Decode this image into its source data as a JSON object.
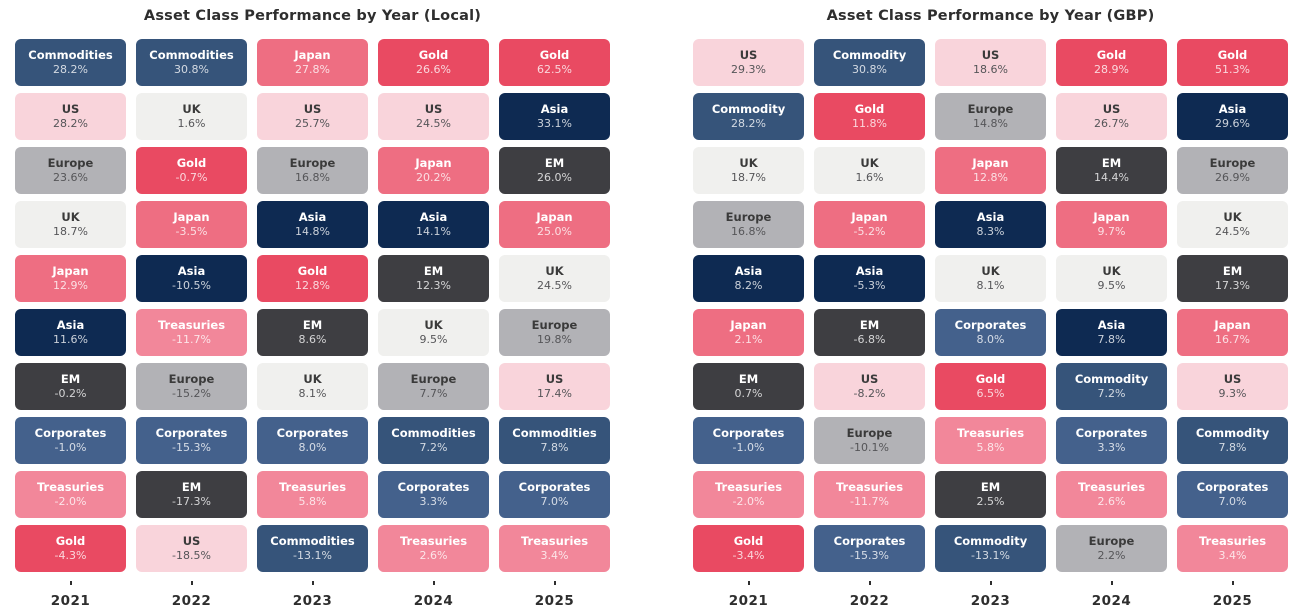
{
  "palette": {
    "commodities": {
      "bg": "#36547A",
      "text": "dark"
    },
    "corporates": {
      "bg": "#44618C",
      "text": "dark"
    },
    "asia": {
      "bg": "#0E2A52",
      "text": "dark"
    },
    "em": {
      "bg": "#3E3E42",
      "text": "dark"
    },
    "europe": {
      "bg": "#B2B2B6",
      "text": "light"
    },
    "uk": {
      "bg": "#F0F0EE",
      "text": "light"
    },
    "us": {
      "bg": "#F9D4DB",
      "text": "light"
    },
    "japan": {
      "bg": "#EE6E82",
      "text": "dark"
    },
    "treasuries": {
      "bg": "#F2879A",
      "text": "dark"
    },
    "gold": {
      "bg": "#E94A62",
      "text": "dark"
    }
  },
  "chart_data": [
    {
      "type": "table",
      "title": "Asset Class Performance by Year (Local)",
      "years": [
        "2021",
        "2022",
        "2023",
        "2024",
        "2025"
      ],
      "columns": [
        {
          "year": "2021",
          "tiles": [
            {
              "label": "Commodities",
              "value": "28.2%",
              "cls": "commodities"
            },
            {
              "label": "US",
              "value": "28.2%",
              "cls": "us"
            },
            {
              "label": "Europe",
              "value": "23.6%",
              "cls": "europe"
            },
            {
              "label": "UK",
              "value": "18.7%",
              "cls": "uk"
            },
            {
              "label": "Japan",
              "value": "12.9%",
              "cls": "japan"
            },
            {
              "label": "Asia",
              "value": "11.6%",
              "cls": "asia"
            },
            {
              "label": "EM",
              "value": "-0.2%",
              "cls": "em"
            },
            {
              "label": "Corporates",
              "value": "-1.0%",
              "cls": "corporates"
            },
            {
              "label": "Treasuries",
              "value": "-2.0%",
              "cls": "treasuries"
            },
            {
              "label": "Gold",
              "value": "-4.3%",
              "cls": "gold"
            }
          ]
        },
        {
          "year": "2022",
          "tiles": [
            {
              "label": "Commodities",
              "value": "30.8%",
              "cls": "commodities"
            },
            {
              "label": "UK",
              "value": "1.6%",
              "cls": "uk"
            },
            {
              "label": "Gold",
              "value": "-0.7%",
              "cls": "gold"
            },
            {
              "label": "Japan",
              "value": "-3.5%",
              "cls": "japan"
            },
            {
              "label": "Asia",
              "value": "-10.5%",
              "cls": "asia"
            },
            {
              "label": "Treasuries",
              "value": "-11.7%",
              "cls": "treasuries"
            },
            {
              "label": "Europe",
              "value": "-15.2%",
              "cls": "europe"
            },
            {
              "label": "Corporates",
              "value": "-15.3%",
              "cls": "corporates"
            },
            {
              "label": "EM",
              "value": "-17.3%",
              "cls": "em"
            },
            {
              "label": "US",
              "value": "-18.5%",
              "cls": "us"
            }
          ]
        },
        {
          "year": "2023",
          "tiles": [
            {
              "label": "Japan",
              "value": "27.8%",
              "cls": "japan"
            },
            {
              "label": "US",
              "value": "25.7%",
              "cls": "us"
            },
            {
              "label": "Europe",
              "value": "16.8%",
              "cls": "europe"
            },
            {
              "label": "Asia",
              "value": "14.8%",
              "cls": "asia"
            },
            {
              "label": "Gold",
              "value": "12.8%",
              "cls": "gold"
            },
            {
              "label": "EM",
              "value": "8.6%",
              "cls": "em"
            },
            {
              "label": "UK",
              "value": "8.1%",
              "cls": "uk"
            },
            {
              "label": "Corporates",
              "value": "8.0%",
              "cls": "corporates"
            },
            {
              "label": "Treasuries",
              "value": "5.8%",
              "cls": "treasuries"
            },
            {
              "label": "Commodities",
              "value": "-13.1%",
              "cls": "commodities"
            }
          ]
        },
        {
          "year": "2024",
          "tiles": [
            {
              "label": "Gold",
              "value": "26.6%",
              "cls": "gold"
            },
            {
              "label": "US",
              "value": "24.5%",
              "cls": "us"
            },
            {
              "label": "Japan",
              "value": "20.2%",
              "cls": "japan"
            },
            {
              "label": "Asia",
              "value": "14.1%",
              "cls": "asia"
            },
            {
              "label": "EM",
              "value": "12.3%",
              "cls": "em"
            },
            {
              "label": "UK",
              "value": "9.5%",
              "cls": "uk"
            },
            {
              "label": "Europe",
              "value": "7.7%",
              "cls": "europe"
            },
            {
              "label": "Commodities",
              "value": "7.2%",
              "cls": "commodities"
            },
            {
              "label": "Corporates",
              "value": "3.3%",
              "cls": "corporates"
            },
            {
              "label": "Treasuries",
              "value": "2.6%",
              "cls": "treasuries"
            }
          ]
        },
        {
          "year": "2025",
          "tiles": [
            {
              "label": "Gold",
              "value": "62.5%",
              "cls": "gold"
            },
            {
              "label": "Asia",
              "value": "33.1%",
              "cls": "asia"
            },
            {
              "label": "EM",
              "value": "26.0%",
              "cls": "em"
            },
            {
              "label": "Japan",
              "value": "25.0%",
              "cls": "japan"
            },
            {
              "label": "UK",
              "value": "24.5%",
              "cls": "uk"
            },
            {
              "label": "Europe",
              "value": "19.8%",
              "cls": "europe"
            },
            {
              "label": "US",
              "value": "17.4%",
              "cls": "us"
            },
            {
              "label": "Commodities",
              "value": "7.8%",
              "cls": "commodities"
            },
            {
              "label": "Corporates",
              "value": "7.0%",
              "cls": "corporates"
            },
            {
              "label": "Treasuries",
              "value": "3.4%",
              "cls": "treasuries"
            }
          ]
        }
      ]
    },
    {
      "type": "table",
      "title": "Asset Class Performance by Year (GBP)",
      "years": [
        "2021",
        "2022",
        "2023",
        "2024",
        "2025"
      ],
      "columns": [
        {
          "year": "2021",
          "tiles": [
            {
              "label": "US",
              "value": "29.3%",
              "cls": "us"
            },
            {
              "label": "Commodity",
              "value": "28.2%",
              "cls": "commodities"
            },
            {
              "label": "UK",
              "value": "18.7%",
              "cls": "uk"
            },
            {
              "label": "Europe",
              "value": "16.8%",
              "cls": "europe"
            },
            {
              "label": "Asia",
              "value": "8.2%",
              "cls": "asia"
            },
            {
              "label": "Japan",
              "value": "2.1%",
              "cls": "japan"
            },
            {
              "label": "EM",
              "value": "0.7%",
              "cls": "em"
            },
            {
              "label": "Corporates",
              "value": "-1.0%",
              "cls": "corporates"
            },
            {
              "label": "Treasuries",
              "value": "-2.0%",
              "cls": "treasuries"
            },
            {
              "label": "Gold",
              "value": "-3.4%",
              "cls": "gold"
            }
          ]
        },
        {
          "year": "2022",
          "tiles": [
            {
              "label": "Commodity",
              "value": "30.8%",
              "cls": "commodities"
            },
            {
              "label": "Gold",
              "value": "11.8%",
              "cls": "gold"
            },
            {
              "label": "UK",
              "value": "1.6%",
              "cls": "uk"
            },
            {
              "label": "Japan",
              "value": "-5.2%",
              "cls": "japan"
            },
            {
              "label": "Asia",
              "value": "-5.3%",
              "cls": "asia"
            },
            {
              "label": "EM",
              "value": "-6.8%",
              "cls": "em"
            },
            {
              "label": "US",
              "value": "-8.2%",
              "cls": "us"
            },
            {
              "label": "Europe",
              "value": "-10.1%",
              "cls": "europe"
            },
            {
              "label": "Treasuries",
              "value": "-11.7%",
              "cls": "treasuries"
            },
            {
              "label": "Corporates",
              "value": "-15.3%",
              "cls": "corporates"
            }
          ]
        },
        {
          "year": "2023",
          "tiles": [
            {
              "label": "US",
              "value": "18.6%",
              "cls": "us"
            },
            {
              "label": "Europe",
              "value": "14.8%",
              "cls": "europe"
            },
            {
              "label": "Japan",
              "value": "12.8%",
              "cls": "japan"
            },
            {
              "label": "Asia",
              "value": "8.3%",
              "cls": "asia"
            },
            {
              "label": "UK",
              "value": "8.1%",
              "cls": "uk"
            },
            {
              "label": "Corporates",
              "value": "8.0%",
              "cls": "corporates"
            },
            {
              "label": "Gold",
              "value": "6.5%",
              "cls": "gold"
            },
            {
              "label": "Treasuries",
              "value": "5.8%",
              "cls": "treasuries"
            },
            {
              "label": "EM",
              "value": "2.5%",
              "cls": "em"
            },
            {
              "label": "Commodity",
              "value": "-13.1%",
              "cls": "commodities"
            }
          ]
        },
        {
          "year": "2024",
          "tiles": [
            {
              "label": "Gold",
              "value": "28.9%",
              "cls": "gold"
            },
            {
              "label": "US",
              "value": "26.7%",
              "cls": "us"
            },
            {
              "label": "EM",
              "value": "14.4%",
              "cls": "em"
            },
            {
              "label": "Japan",
              "value": "9.7%",
              "cls": "japan"
            },
            {
              "label": "UK",
              "value": "9.5%",
              "cls": "uk"
            },
            {
              "label": "Asia",
              "value": "7.8%",
              "cls": "asia"
            },
            {
              "label": "Commodity",
              "value": "7.2%",
              "cls": "commodities"
            },
            {
              "label": "Corporates",
              "value": "3.3%",
              "cls": "corporates"
            },
            {
              "label": "Treasuries",
              "value": "2.6%",
              "cls": "treasuries"
            },
            {
              "label": "Europe",
              "value": "2.2%",
              "cls": "europe"
            }
          ]
        },
        {
          "year": "2025",
          "tiles": [
            {
              "label": "Gold",
              "value": "51.3%",
              "cls": "gold"
            },
            {
              "label": "Asia",
              "value": "29.6%",
              "cls": "asia"
            },
            {
              "label": "Europe",
              "value": "26.9%",
              "cls": "europe"
            },
            {
              "label": "UK",
              "value": "24.5%",
              "cls": "uk"
            },
            {
              "label": "EM",
              "value": "17.3%",
              "cls": "em"
            },
            {
              "label": "Japan",
              "value": "16.7%",
              "cls": "japan"
            },
            {
              "label": "US",
              "value": "9.3%",
              "cls": "us"
            },
            {
              "label": "Commodity",
              "value": "7.8%",
              "cls": "commodities"
            },
            {
              "label": "Corporates",
              "value": "7.0%",
              "cls": "corporates"
            },
            {
              "label": "Treasuries",
              "value": "3.4%",
              "cls": "treasuries"
            }
          ]
        }
      ]
    }
  ]
}
